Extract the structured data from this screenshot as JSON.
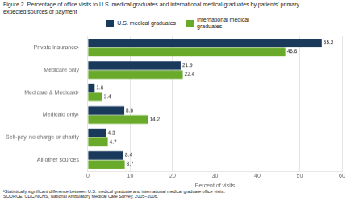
{
  "chart_data": {
    "type": "bar",
    "orientation": "horizontal",
    "title": "Figure 2. Percentage of office visits to U.S. medical graduates and international medical graduates by patients' primary\nexpected sources of payment",
    "categories": [
      "Private insurance¹",
      "Medicare only",
      "Medicare & Medicaid¹",
      "Medicaid only¹",
      "Self-pay, no charge or charity",
      "All other sources"
    ],
    "series": [
      {
        "name": "U.S. medical graduates",
        "color": "#1a3a5c",
        "values": [
          55.2,
          21.9,
          1.6,
          8.6,
          4.3,
          8.4
        ]
      },
      {
        "name": "International medical\ngraduates",
        "color": "#6aaa2a",
        "values": [
          46.6,
          22.4,
          3.4,
          14.2,
          4.7,
          8.7
        ]
      }
    ],
    "xlabel": "Percent of visits",
    "xlim": [
      0,
      60
    ],
    "xticks": [
      0,
      10,
      20,
      30,
      40,
      50,
      60
    ],
    "grid": true,
    "legend": "top",
    "data_labels": true,
    "footnote": "¹Statistically significant difference between U.S. medical graduate and international medical graduate office visits.\nSOURCE: CDC/NCHS, National Ambulatory Medical Care Survey, 2005–2006."
  }
}
